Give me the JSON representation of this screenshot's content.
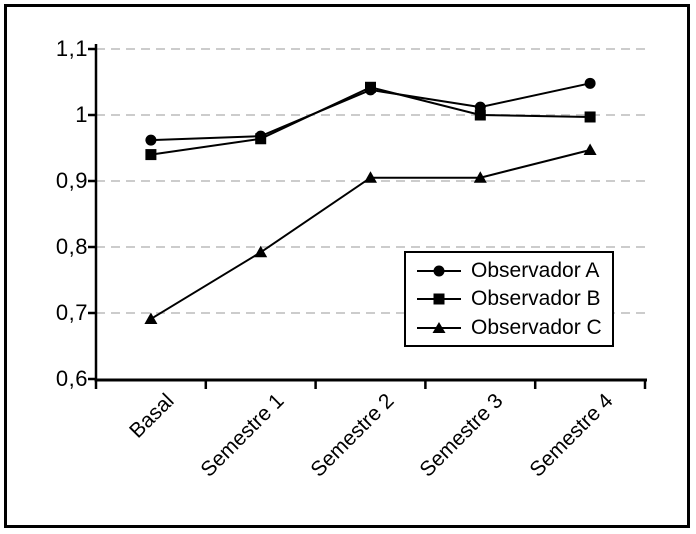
{
  "chart_data": {
    "type": "line",
    "title": "",
    "xlabel": "",
    "ylabel": "",
    "categories": [
      "Basal",
      "Semestre 1",
      "Semestre 2",
      "Semestre 3",
      "Semestre 4"
    ],
    "series": [
      {
        "name": "Observador A",
        "marker": "circle",
        "values": [
          0.962,
          0.968,
          1.038,
          1.012,
          1.048
        ]
      },
      {
        "name": "Observador B",
        "marker": "square",
        "values": [
          0.94,
          0.964,
          1.042,
          1.0,
          0.997
        ]
      },
      {
        "name": "Observador C",
        "marker": "triangle",
        "values": [
          0.691,
          0.792,
          0.905,
          0.905,
          0.947
        ]
      }
    ],
    "ylim": [
      0.6,
      1.1
    ],
    "y_ticks": [
      1.1,
      1.0,
      0.9,
      0.8,
      0.7,
      0.6
    ],
    "y_tick_labels": [
      "1,1",
      "1",
      "0,9",
      "0,8",
      "0,7",
      "0,6"
    ],
    "grid": "horizontal-dashed",
    "legend_position": "inside-bottom-right",
    "colors": {
      "line": "#000000",
      "marker": "#000000",
      "gridline": "#cccccc",
      "axis": "#000000",
      "background": "#ffffff",
      "frame_border": "#000000"
    }
  }
}
